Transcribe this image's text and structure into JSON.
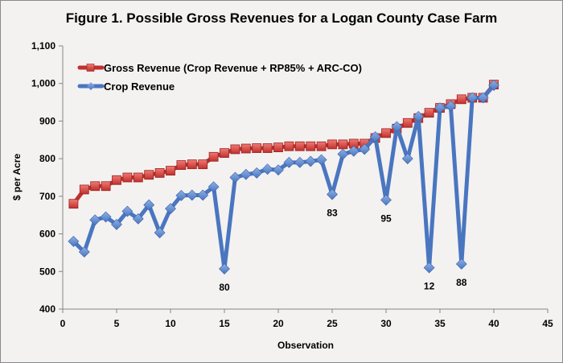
{
  "chart_data": {
    "type": "line",
    "title": "Figure 1.  Possible Gross Revenues for a Logan County Case Farm",
    "xlabel": "Observation",
    "ylabel": "$ per Acre",
    "xlim": [
      0,
      45
    ],
    "ylim": [
      400,
      1100
    ],
    "x_ticks": [
      0,
      5,
      10,
      15,
      20,
      25,
      30,
      35,
      40,
      45
    ],
    "y_ticks": [
      400,
      500,
      600,
      700,
      800,
      900,
      1000,
      1100
    ],
    "y_tick_labels": [
      "400",
      "500",
      "600",
      "700",
      "800",
      "900",
      "1,000",
      "1,100"
    ],
    "grid": false,
    "legend_position": "top-left",
    "x": [
      1,
      2,
      3,
      4,
      5,
      6,
      7,
      8,
      9,
      10,
      11,
      12,
      13,
      14,
      15,
      16,
      17,
      18,
      19,
      20,
      21,
      22,
      23,
      24,
      25,
      26,
      27,
      28,
      29,
      30,
      31,
      32,
      33,
      34,
      35,
      36,
      37,
      38,
      39,
      40
    ],
    "series": [
      {
        "name": "Gross Revenue (Crop Revenue + RP85% + ARC-CO)",
        "color": "#c0302d",
        "marker": "square",
        "values": [
          680,
          718,
          727,
          727,
          743,
          750,
          750,
          757,
          762,
          768,
          783,
          785,
          785,
          805,
          815,
          825,
          827,
          828,
          828,
          830,
          833,
          833,
          833,
          833,
          838,
          838,
          840,
          840,
          855,
          868,
          880,
          895,
          908,
          922,
          935,
          945,
          958,
          962,
          962,
          997
        ]
      },
      {
        "name": "Crop Revenue",
        "color": "#4a76c0",
        "marker": "diamond",
        "values": [
          580,
          552,
          637,
          645,
          625,
          660,
          640,
          677,
          603,
          667,
          702,
          703,
          703,
          725,
          507,
          750,
          758,
          762,
          772,
          770,
          790,
          790,
          793,
          797,
          705,
          812,
          820,
          825,
          858,
          690,
          885,
          800,
          912,
          510,
          935,
          940,
          520,
          962,
          962,
          995
        ]
      }
    ],
    "annotations": [
      {
        "x": 15,
        "series": "Crop Revenue",
        "text": "80"
      },
      {
        "x": 25,
        "series": "Crop Revenue",
        "text": "83"
      },
      {
        "x": 30,
        "series": "Crop Revenue",
        "text": "95"
      },
      {
        "x": 34,
        "series": "Crop Revenue",
        "text": "12"
      },
      {
        "x": 37,
        "series": "Crop Revenue",
        "text": "88"
      }
    ]
  }
}
